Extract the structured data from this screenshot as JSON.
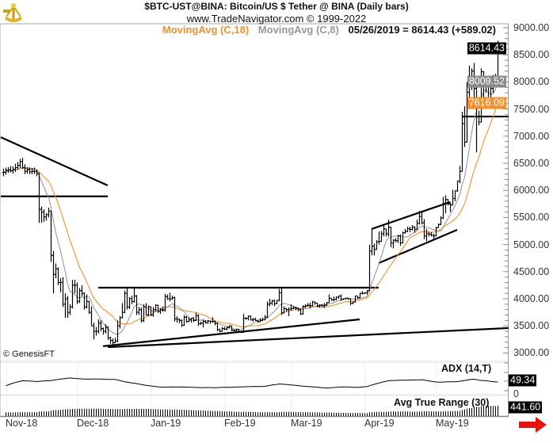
{
  "header": {
    "title": "$BTC-UST@BINA:  Bitcoin/US $ Tether @ BINA  (Daily bars)",
    "url": "www.TradeNavigator.com © 1999-2022",
    "legend": [
      {
        "label": "MovingAvg (C,18)",
        "color": "#f5902a"
      },
      {
        "label": "MovingAvg (C,8)",
        "color": "#999999"
      },
      {
        "label": "05/26/2019 = 8614.43 (+589.02)",
        "color": "#111111"
      }
    ]
  },
  "credit": "© GenesisFT",
  "price_axis": [
    "9000.00",
    "8500.00",
    "8000.00",
    "7500.00",
    "7000.00",
    "6500.00",
    "6000.00",
    "5500.00",
    "5000.00",
    "4500.00",
    "4000.00",
    "3500.00",
    "3000.00"
  ],
  "badges": [
    {
      "label": "8614.43",
      "value": 8614.43,
      "color": "#000000"
    },
    {
      "label": "8009.52",
      "value": 8009.52,
      "color": "#8a8a8a"
    },
    {
      "label": "7616.09",
      "value": 7616.09,
      "color": "#f5902a"
    }
  ],
  "months": [
    {
      "label": "Nov-18",
      "date": "2018-11-01"
    },
    {
      "label": "Dec-18",
      "date": "2018-12-01"
    },
    {
      "label": "Jan-19",
      "date": "2019-01-01"
    },
    {
      "label": "Feb-19",
      "date": "2019-02-01"
    },
    {
      "label": "Mar-19",
      "date": "2019-03-01"
    },
    {
      "label": "Apr-19",
      "date": "2019-04-01"
    },
    {
      "label": "May-19",
      "date": "2019-05-01"
    }
  ],
  "adx_panel": {
    "label": "ADX (14,T)",
    "value": "49.34",
    "zero_label": "0"
  },
  "atr_panel": {
    "label": "Avg True Range (30)",
    "value": "441.60"
  },
  "nav_arrow": {
    "icon": "right-arrow-icon",
    "color": "#e8120c"
  },
  "chart_data": {
    "type": "ohlc-bar",
    "symbol": "$BTC-UST@BINA",
    "interval": "daily",
    "first_bar_date": "2018-10-30",
    "last_bar_date": "2019-05-26",
    "ylim": [
      3000,
      9000
    ],
    "bar_fields": [
      "high",
      "low",
      "close"
    ],
    "moving_averages": [
      {
        "name": "MovingAvg (C,18)",
        "period": 18,
        "color": "#f5902a"
      },
      {
        "name": "MovingAvg (C,8)",
        "period": 8,
        "color": "#999999"
      }
    ],
    "trendlines": [
      {
        "from": [
          "2018-10-29",
          6980
        ],
        "to": [
          "2018-12-13",
          6090
        ]
      },
      {
        "from": [
          "2018-10-29",
          5890
        ],
        "to": [
          "2018-12-13",
          5890
        ]
      },
      {
        "from": [
          "2018-12-09",
          4205
        ],
        "to": [
          "2019-04-06",
          4205
        ]
      },
      {
        "from": [
          "2018-12-11",
          3125
        ],
        "to": [
          "2019-03-29",
          3620
        ]
      },
      {
        "from": [
          "2018-12-13",
          3108
        ],
        "to": [
          "2019-06-17",
          3460
        ]
      },
      {
        "from": [
          "2019-04-03",
          5287
        ],
        "to": [
          "2019-05-06",
          5784
        ]
      },
      {
        "from": [
          "2019-04-06",
          4658
        ],
        "to": [
          "2019-05-09",
          5272
        ]
      },
      {
        "from": [
          "2019-05-11",
          7362
        ],
        "to": [
          "2019-06-17",
          7362
        ]
      }
    ],
    "bars": [
      [
        6400,
        6260,
        6330
      ],
      [
        6420,
        6290,
        6370
      ],
      [
        6430,
        6320,
        6380
      ],
      [
        6450,
        6330,
        6360
      ],
      [
        6440,
        6310,
        6390
      ],
      [
        6490,
        6340,
        6420
      ],
      [
        6520,
        6380,
        6460
      ],
      [
        6580,
        6410,
        6530
      ],
      [
        6600,
        6400,
        6420
      ],
      [
        6480,
        6300,
        6350
      ],
      [
        6430,
        6310,
        6380
      ],
      [
        6420,
        6300,
        6340
      ],
      [
        6410,
        6300,
        6350
      ],
      [
        6420,
        6300,
        6350
      ],
      [
        6380,
        6260,
        6310
      ],
      [
        6330,
        5400,
        5650
      ],
      [
        5700,
        5400,
        5600
      ],
      [
        5650,
        5420,
        5510
      ],
      [
        5580,
        5440,
        5550
      ],
      [
        5680,
        5500,
        5620
      ],
      [
        5620,
        4680,
        4800
      ],
      [
        4880,
        4100,
        4450
      ],
      [
        4650,
        4380,
        4550
      ],
      [
        4580,
        4250,
        4300
      ],
      [
        4380,
        4120,
        4300
      ],
      [
        4400,
        3850,
        3900
      ],
      [
        4100,
        3650,
        4000
      ],
      [
        4050,
        3650,
        3750
      ],
      [
        3900,
        3700,
        3850
      ],
      [
        4350,
        3820,
        4250
      ],
      [
        4350,
        4100,
        4250
      ],
      [
        4300,
        3900,
        3950
      ],
      [
        4200,
        3920,
        4150
      ],
      [
        4250,
        4050,
        4100
      ],
      [
        4120,
        3800,
        3850
      ],
      [
        4080,
        3820,
        3950
      ],
      [
        3960,
        3720,
        3750
      ],
      [
        3860,
        3500,
        3500
      ],
      [
        3560,
        3250,
        3400
      ],
      [
        3480,
        3320,
        3400
      ],
      [
        3620,
        3360,
        3550
      ],
      [
        3600,
        3400,
        3450
      ],
      [
        3470,
        3340,
        3400
      ],
      [
        3530,
        3360,
        3480
      ],
      [
        3490,
        3240,
        3280
      ],
      [
        3300,
        3170,
        3230
      ],
      [
        3270,
        3140,
        3190
      ],
      [
        3280,
        3180,
        3220
      ],
      [
        3600,
        3200,
        3500
      ],
      [
        3680,
        3450,
        3650
      ],
      [
        3920,
        3640,
        3750
      ],
      [
        4150,
        3730,
        4100
      ],
      [
        4200,
        3800,
        3850
      ],
      [
        4030,
        3810,
        4000
      ],
      [
        4060,
        3900,
        3950
      ],
      [
        4220,
        3930,
        4050
      ],
      [
        4070,
        3700,
        3750
      ],
      [
        3850,
        3700,
        3800
      ],
      [
        3840,
        3560,
        3600
      ],
      [
        3900,
        3570,
        3850
      ],
      [
        3920,
        3690,
        3700
      ],
      [
        3880,
        3680,
        3850
      ],
      [
        3860,
        3680,
        3700
      ],
      [
        3850,
        3670,
        3800
      ],
      [
        3900,
        3760,
        3880
      ],
      [
        3890,
        3740,
        3770
      ],
      [
        3830,
        3720,
        3800
      ],
      [
        3860,
        3760,
        3790
      ],
      [
        4090,
        3760,
        4040
      ],
      [
        4080,
        3980,
        4000
      ],
      [
        4110,
        3950,
        4000
      ],
      [
        4060,
        3980,
        4020
      ],
      [
        4040,
        3580,
        3630
      ],
      [
        3680,
        3560,
        3620
      ],
      [
        3640,
        3550,
        3600
      ],
      [
        3620,
        3480,
        3510
      ],
      [
        3700,
        3500,
        3660
      ],
      [
        3680,
        3560,
        3580
      ],
      [
        3660,
        3570,
        3610
      ],
      [
        3650,
        3560,
        3640
      ],
      [
        3660,
        3570,
        3600
      ],
      [
        3740,
        3590,
        3690
      ],
      [
        3710,
        3500,
        3540
      ],
      [
        3580,
        3520,
        3550
      ],
      [
        3620,
        3470,
        3580
      ],
      [
        3600,
        3540,
        3560
      ],
      [
        3610,
        3540,
        3590
      ],
      [
        3600,
        3540,
        3580
      ],
      [
        3660,
        3560,
        3580
      ],
      [
        3600,
        3510,
        3550
      ],
      [
        3560,
        3400,
        3430
      ],
      [
        3450,
        3380,
        3400
      ],
      [
        3480,
        3390,
        3450
      ],
      [
        3480,
        3420,
        3440
      ],
      [
        3490,
        3420,
        3470
      ],
      [
        3510,
        3450,
        3500
      ],
      [
        3500,
        3400,
        3420
      ],
      [
        3440,
        3400,
        3410
      ],
      [
        3450,
        3400,
        3430
      ],
      [
        3440,
        3370,
        3390
      ],
      [
        3410,
        3370,
        3380
      ],
      [
        3720,
        3370,
        3640
      ],
      [
        3660,
        3610,
        3640
      ],
      [
        3690,
        3600,
        3680
      ],
      [
        3690,
        3600,
        3610
      ],
      [
        3650,
        3580,
        3620
      ],
      [
        3650,
        3590,
        3600
      ],
      [
        3610,
        3560,
        3580
      ],
      [
        3640,
        3570,
        3600
      ],
      [
        3650,
        3590,
        3620
      ],
      [
        3700,
        3600,
        3660
      ],
      [
        3950,
        3650,
        3900
      ],
      [
        4000,
        3860,
        3920
      ],
      [
        3980,
        3880,
        3960
      ],
      [
        3990,
        3860,
        3910
      ],
      [
        3980,
        3900,
        3970
      ],
      [
        4180,
        3950,
        4110
      ],
      [
        4210,
        3700,
        3740
      ],
      [
        3860,
        3730,
        3820
      ],
      [
        3830,
        3760,
        3800
      ],
      [
        3840,
        3680,
        3810
      ],
      [
        3900,
        3780,
        3820
      ],
      [
        3870,
        3810,
        3830
      ],
      [
        3850,
        3790,
        3830
      ],
      [
        3840,
        3770,
        3800
      ],
      [
        3820,
        3700,
        3720
      ],
      [
        3880,
        3710,
        3860
      ],
      [
        3900,
        3830,
        3870
      ],
      [
        3920,
        3860,
        3880
      ],
      [
        3930,
        3820,
        3870
      ],
      [
        3960,
        3860,
        3940
      ],
      [
        3950,
        3890,
        3920
      ],
      [
        3930,
        3840,
        3870
      ],
      [
        3900,
        3830,
        3880
      ],
      [
        3900,
        3850,
        3870
      ],
      [
        3920,
        3830,
        3880
      ],
      [
        3940,
        3870,
        3930
      ],
      [
        4080,
        3930,
        4010
      ],
      [
        4010,
        3960,
        3980
      ],
      [
        4040,
        3950,
        3990
      ],
      [
        4040,
        3970,
        4030
      ],
      [
        4060,
        4000,
        4050
      ],
      [
        4080,
        3960,
        3990
      ],
      [
        4010,
        3980,
        4000
      ],
      [
        4020,
        3990,
        4010
      ],
      [
        4020,
        3980,
        4000
      ],
      [
        4010,
        3880,
        3920
      ],
      [
        3950,
        3900,
        3940
      ],
      [
        4060,
        3930,
        4050
      ],
      [
        4050,
        4000,
        4020
      ],
      [
        4110,
        4010,
        4100
      ],
      [
        4140,
        4080,
        4100
      ],
      [
        4120,
        4090,
        4110
      ],
      [
        4160,
        4080,
        4150
      ],
      [
        5000,
        4140,
        4880
      ],
      [
        5300,
        4800,
        4970
      ],
      [
        5020,
        4800,
        4910
      ],
      [
        5080,
        4900,
        5050
      ],
      [
        5240,
        5000,
        5060
      ],
      [
        5250,
        5050,
        5200
      ],
      [
        5350,
        5150,
        5290
      ],
      [
        5290,
        5150,
        5200
      ],
      [
        5460,
        5150,
        5320
      ],
      [
        5330,
        4950,
        5030
      ],
      [
        5100,
        4930,
        5080
      ],
      [
        5120,
        5040,
        5070
      ],
      [
        5180,
        5030,
        5160
      ],
      [
        5190,
        4980,
        5030
      ],
      [
        5240,
        5020,
        5220
      ],
      [
        5290,
        5200,
        5240
      ],
      [
        5330,
        5230,
        5290
      ],
      [
        5330,
        5230,
        5280
      ],
      [
        5360,
        5260,
        5320
      ],
      [
        5340,
        5220,
        5280
      ],
      [
        5460,
        5270,
        5390
      ],
      [
        5620,
        5370,
        5520
      ],
      [
        5600,
        5370,
        5400
      ],
      [
        5470,
        5100,
        5160
      ],
      [
        5290,
        5060,
        5200
      ],
      [
        5230,
        5150,
        5190
      ],
      [
        5230,
        5150,
        5170
      ],
      [
        5200,
        5100,
        5160
      ],
      [
        5330,
        5150,
        5310
      ],
      [
        5390,
        5310,
        5370
      ],
      [
        5520,
        5360,
        5490
      ],
      [
        5880,
        5470,
        5760
      ],
      [
        5910,
        5580,
        5830
      ],
      [
        5840,
        5720,
        5750
      ],
      [
        5780,
        5600,
        5730
      ],
      [
        6010,
        5720,
        5850
      ],
      [
        6000,
        5800,
        5990
      ],
      [
        6180,
        5970,
        6170
      ],
      [
        6450,
        6130,
        6350
      ],
      [
        7450,
        6350,
        7230
      ],
      [
        7550,
        6800,
        6890
      ],
      [
        8000,
        6880,
        7810
      ],
      [
        8300,
        7620,
        7990
      ],
      [
        8250,
        7850,
        8200
      ],
      [
        8350,
        7600,
        7880
      ],
      [
        7950,
        6700,
        7360
      ],
      [
        7470,
        7200,
        7260
      ],
      [
        8250,
        7250,
        8190
      ],
      [
        8200,
        7600,
        7990
      ],
      [
        8030,
        7800,
        7950
      ],
      [
        8000,
        7550,
        7640
      ],
      [
        7950,
        7500,
        7880
      ],
      [
        8130,
        7800,
        7990
      ],
      [
        8150,
        7950,
        8050
      ],
      [
        8760,
        8000,
        8614.43
      ]
    ]
  }
}
